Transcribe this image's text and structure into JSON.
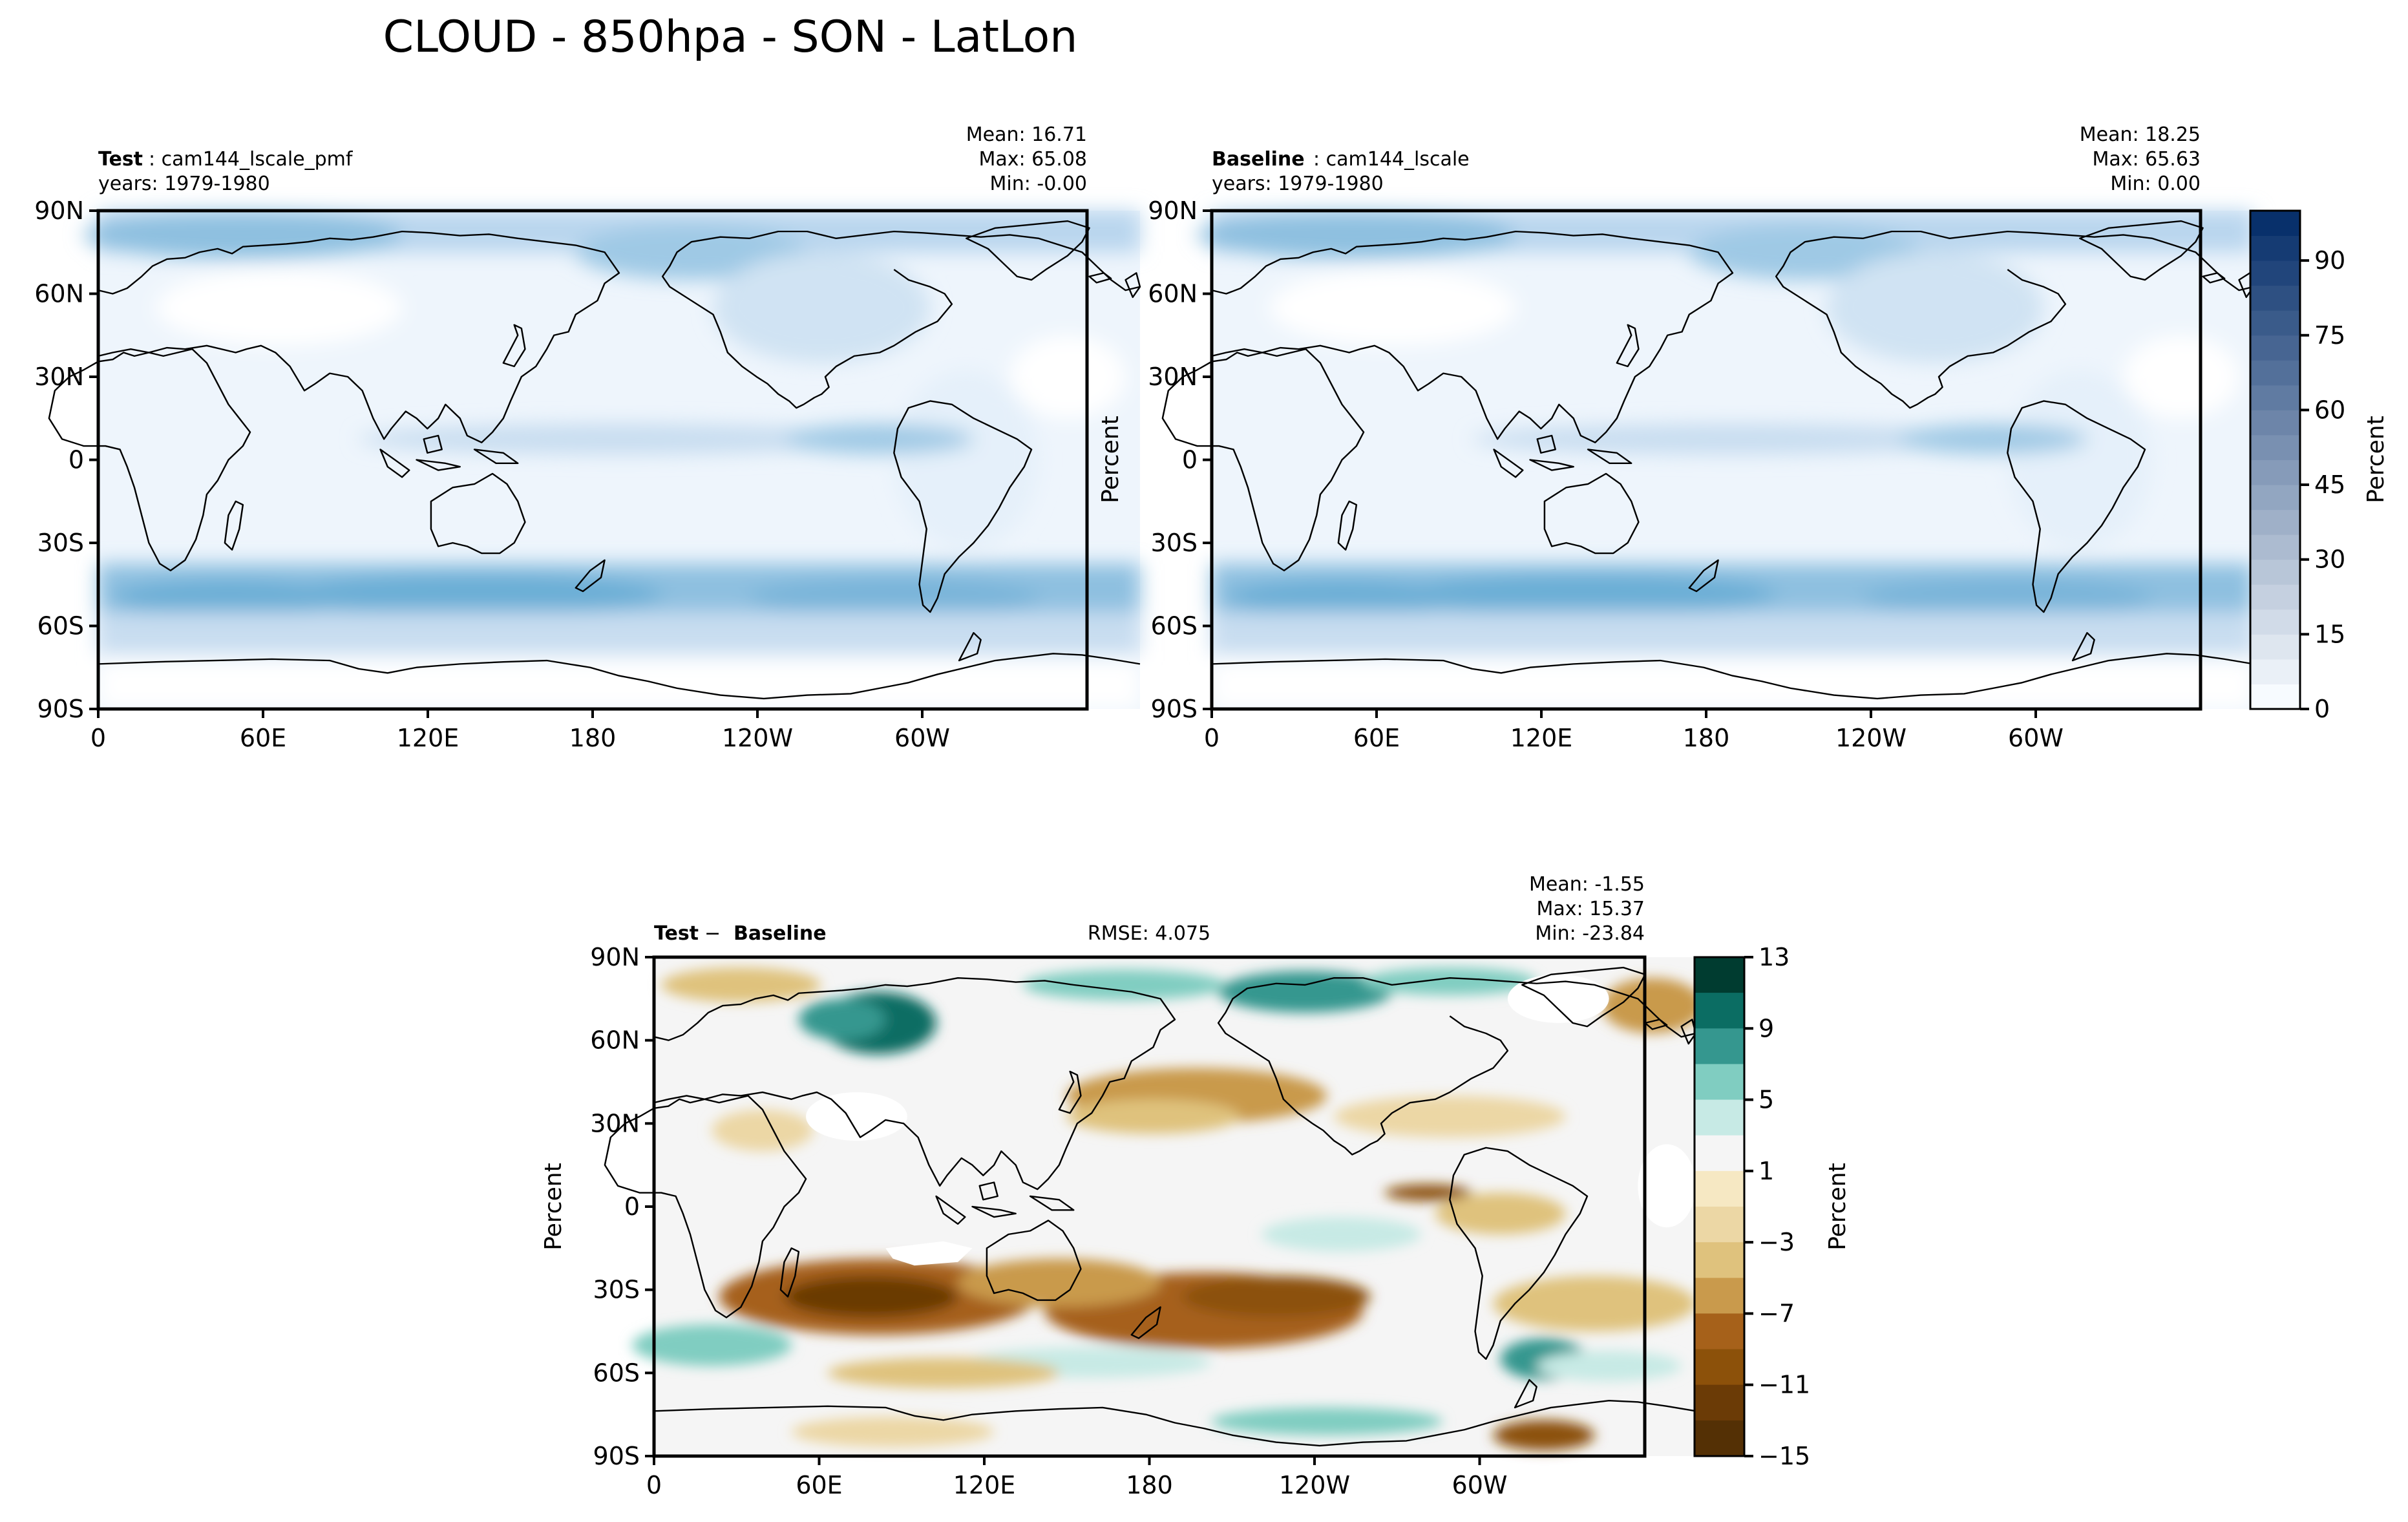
{
  "title": "CLOUD - 850hpa - SON - LatLon",
  "colors": {
    "frame": "#000000",
    "coast": "#000000",
    "cloud_low": "#f7fbff",
    "cloud_high": "#08306b",
    "diff_neg": "#543005",
    "diff_zero": "#f5f5f5",
    "diff_pos": "#003c30"
  },
  "panels": [
    {
      "id": "test",
      "label_bold": "Test",
      "label_rest": ": cam144_lscale_pmf",
      "years": "years: 1979-1980",
      "stats": [
        "Mean: 16.71",
        "Max: 65.08",
        "Min: -0.00"
      ],
      "ylabel": ""
    },
    {
      "id": "baseline",
      "label_bold": "Baseline",
      "label_rest": ": cam144_lscale",
      "years": "years: 1979-1980",
      "stats": [
        "Mean: 18.25",
        "Max: 65.63",
        "Min:  0.00"
      ],
      "ylabel": "Percent"
    },
    {
      "id": "diff",
      "label_bold": "Test",
      "label_sep": " − ",
      "label_bold2": "Baseline",
      "rmse": "RMSE: 4.075",
      "stats": [
        "Mean: -1.55",
        "Max: 15.37",
        "Min: -23.84"
      ],
      "ylabel": "Percent"
    }
  ],
  "axes": {
    "lat_ticks": [
      "90N",
      "60N",
      "30N",
      "0",
      "30S",
      "60S",
      "90S"
    ],
    "lat_values": [
      90,
      60,
      30,
      0,
      -30,
      -60,
      -90
    ],
    "lon_ticks": [
      "0",
      "60E",
      "120E",
      "180",
      "120W",
      "60W"
    ],
    "lon_values": [
      0,
      60,
      120,
      180,
      240,
      300
    ],
    "lon_range": [
      0,
      360
    ],
    "lat_range": [
      -90,
      90
    ]
  },
  "colorbars": {
    "cloud": {
      "label": "Percent",
      "range": [
        0,
        100
      ],
      "tick_labels": [
        "0",
        "15",
        "30",
        "45",
        "60",
        "75",
        "90"
      ],
      "tick_values": [
        0,
        15,
        30,
        45,
        60,
        75,
        90
      ],
      "levels": 20
    },
    "diff": {
      "label": "Percent",
      "tick_labels": [
        "13",
        "9",
        "5",
        "1",
        "−3",
        "−7",
        "−11",
        "−15"
      ],
      "tick_values": [
        13,
        9,
        5,
        1,
        -3,
        -7,
        -11,
        -15
      ],
      "level_colors": [
        "#003c30",
        "#0b6d63",
        "#35978f",
        "#80cdc1",
        "#c7eae5",
        "#f5f5f5",
        "#f6e8c3",
        "#ecd7a5",
        "#dfc27d",
        "#c99a4c",
        "#a6611a",
        "#8c510a",
        "#6b3b06",
        "#543005"
      ]
    }
  }
}
